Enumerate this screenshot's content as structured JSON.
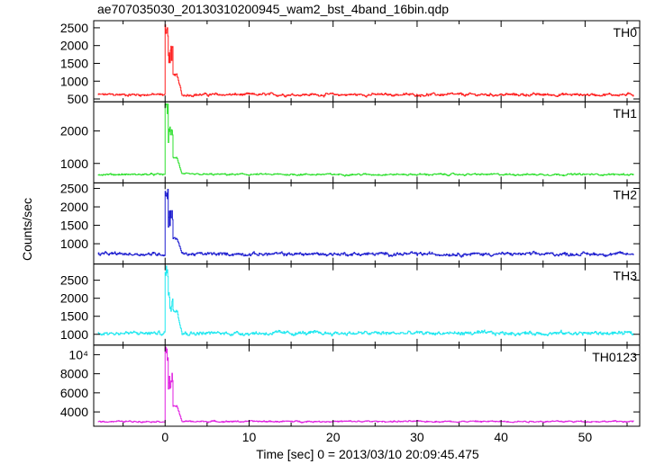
{
  "title": "ae707035030_20130310200945_wam2_bst_4band_16bin.qdp",
  "chart_data": {
    "type": "line",
    "title": "ae707035030_20130310200945_wam2_bst_4band_16bin.qdp",
    "xlabel": "Time [sec] 0 = 2013/03/10 20:09:45.475",
    "ylabel": "Counts/sec",
    "xlim": [
      -8.5,
      56.5
    ],
    "x_ticks": [
      0,
      10,
      20,
      30,
      40,
      50
    ],
    "x_tick_labels": [
      "0",
      "10",
      "20",
      "30",
      "40",
      "50"
    ],
    "grid": false,
    "panels": [
      {
        "name": "TH0",
        "color": "#ff2020",
        "ylim": [
          420,
          2700
        ],
        "y_ticks": [
          500,
          1000,
          1500,
          2000,
          2500
        ],
        "y_tick_labels": [
          "500",
          "1000",
          "1500",
          "2000",
          "2500"
        ],
        "baseline": 620,
        "noise": 55,
        "data_start": -8.0,
        "data_end": 55.8,
        "peak": 2650,
        "shoulder": 1180
      },
      {
        "name": "TH1",
        "color": "#30e030",
        "ylim": [
          400,
          2900
        ],
        "y_ticks": [
          1000,
          2000
        ],
        "y_tick_labels": [
          "1000",
          "2000"
        ],
        "baseline": 660,
        "noise": 40,
        "data_start": -8.0,
        "data_end": 55.8,
        "peak": 2850,
        "shoulder": 1180
      },
      {
        "name": "TH2",
        "color": "#2020d0",
        "ylim": [
          450,
          2650
        ],
        "y_ticks": [
          1000,
          1500,
          2000,
          2500
        ],
        "y_tick_labels": [
          "1000",
          "1500",
          "2000",
          "2500"
        ],
        "baseline": 720,
        "noise": 65,
        "data_start": -8.0,
        "data_end": 55.8,
        "peak": 2600,
        "shoulder": 1150
      },
      {
        "name": "TH3",
        "color": "#20e8f0",
        "ylim": [
          700,
          2950
        ],
        "y_ticks": [
          1000,
          1500,
          2000,
          2500
        ],
        "y_tick_labels": [
          "1000",
          "1500",
          "2000",
          "2500"
        ],
        "baseline": 1030,
        "noise": 75,
        "data_start": -8.0,
        "data_end": 55.8,
        "peak": 2900,
        "shoulder": 1650
      },
      {
        "name": "TH0123",
        "color": "#e020e0",
        "ylim": [
          2500,
          11000
        ],
        "y_ticks": [
          4000,
          6000,
          8000,
          10000
        ],
        "y_tick_labels": [
          "4000",
          "6000",
          "8000",
          "10⁴"
        ],
        "baseline": 3000,
        "noise": 110,
        "data_start": -8.0,
        "data_end": 55.8,
        "peak": 10800,
        "shoulder": 4600
      }
    ]
  }
}
